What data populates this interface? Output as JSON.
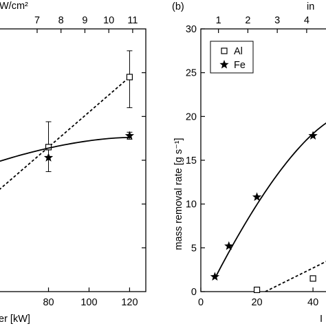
{
  "colors": {
    "ink": "#000000",
    "background": "#ffffff",
    "open_marker_fill": "#ffffff"
  },
  "chart_data": [
    {
      "panel_label": "",
      "type": "scatter",
      "xlabel": "er [kW]",
      "ylabel": "",
      "top_xlabel": "W/cm²",
      "xlim": [
        52,
        128
      ],
      "top_xlim": [
        5.1,
        11.55
      ],
      "x_ticks": [
        80,
        100,
        120
      ],
      "top_x_ticks": [
        7,
        8,
        9,
        10,
        11
      ],
      "ylim": [
        0,
        30
      ],
      "y_ticks": [
        5,
        10,
        15,
        20,
        25
      ],
      "y_tick_labels": false,
      "series": [
        {
          "marker": "square",
          "x": [
            80,
            120
          ],
          "y": [
            16.5,
            24.5
          ],
          "yerr_low": [
            2.8,
            3.5
          ],
          "yerr_high": [
            2.9,
            3.0
          ],
          "fit": {
            "style": "dashed",
            "x": [
              52,
              120
            ],
            "y": [
              10.9,
              24.5
            ]
          }
        },
        {
          "marker": "star",
          "x": [
            80,
            120
          ],
          "y": [
            15.3,
            17.8
          ],
          "yerr_low": [
            0,
            0.4
          ],
          "yerr_high": [
            0,
            0.4
          ],
          "fit": {
            "style": "solid",
            "x": [
              52,
              120
            ],
            "y": [
              14.6,
              17.6
            ]
          }
        }
      ]
    },
    {
      "panel_label": "(b)",
      "type": "scatter",
      "xlabel": "I",
      "ylabel": "mass removal rate [g s⁻¹]",
      "top_xlabel": "in",
      "xlim": [
        0,
        52
      ],
      "top_xlim": [
        0.4,
        5.36
      ],
      "x_ticks": [
        0,
        20,
        40
      ],
      "top_x_ticks": [
        1,
        2,
        3,
        4
      ],
      "ylim": [
        0,
        30
      ],
      "y_ticks": [
        0,
        5,
        10,
        15,
        20,
        25,
        30
      ],
      "y_tick_labels": true,
      "legend": {
        "position": "top-left",
        "entries": [
          "Al",
          "Fe"
        ]
      },
      "series": [
        {
          "name": "Al",
          "marker": "square",
          "x": [
            20,
            40
          ],
          "y": [
            0.2,
            1.5
          ],
          "fit": {
            "style": "dashed",
            "x": [
              23,
              52
            ],
            "y": [
              0,
              4.6
            ]
          }
        },
        {
          "name": "Fe",
          "marker": "star",
          "x": [
            5,
            10,
            20,
            40
          ],
          "y": [
            1.7,
            5.2,
            10.8,
            17.8
          ],
          "fit": {
            "style": "solid",
            "x": [
              5,
              52
            ],
            "y": [
              1.5,
              20.3
            ]
          }
        }
      ]
    }
  ]
}
